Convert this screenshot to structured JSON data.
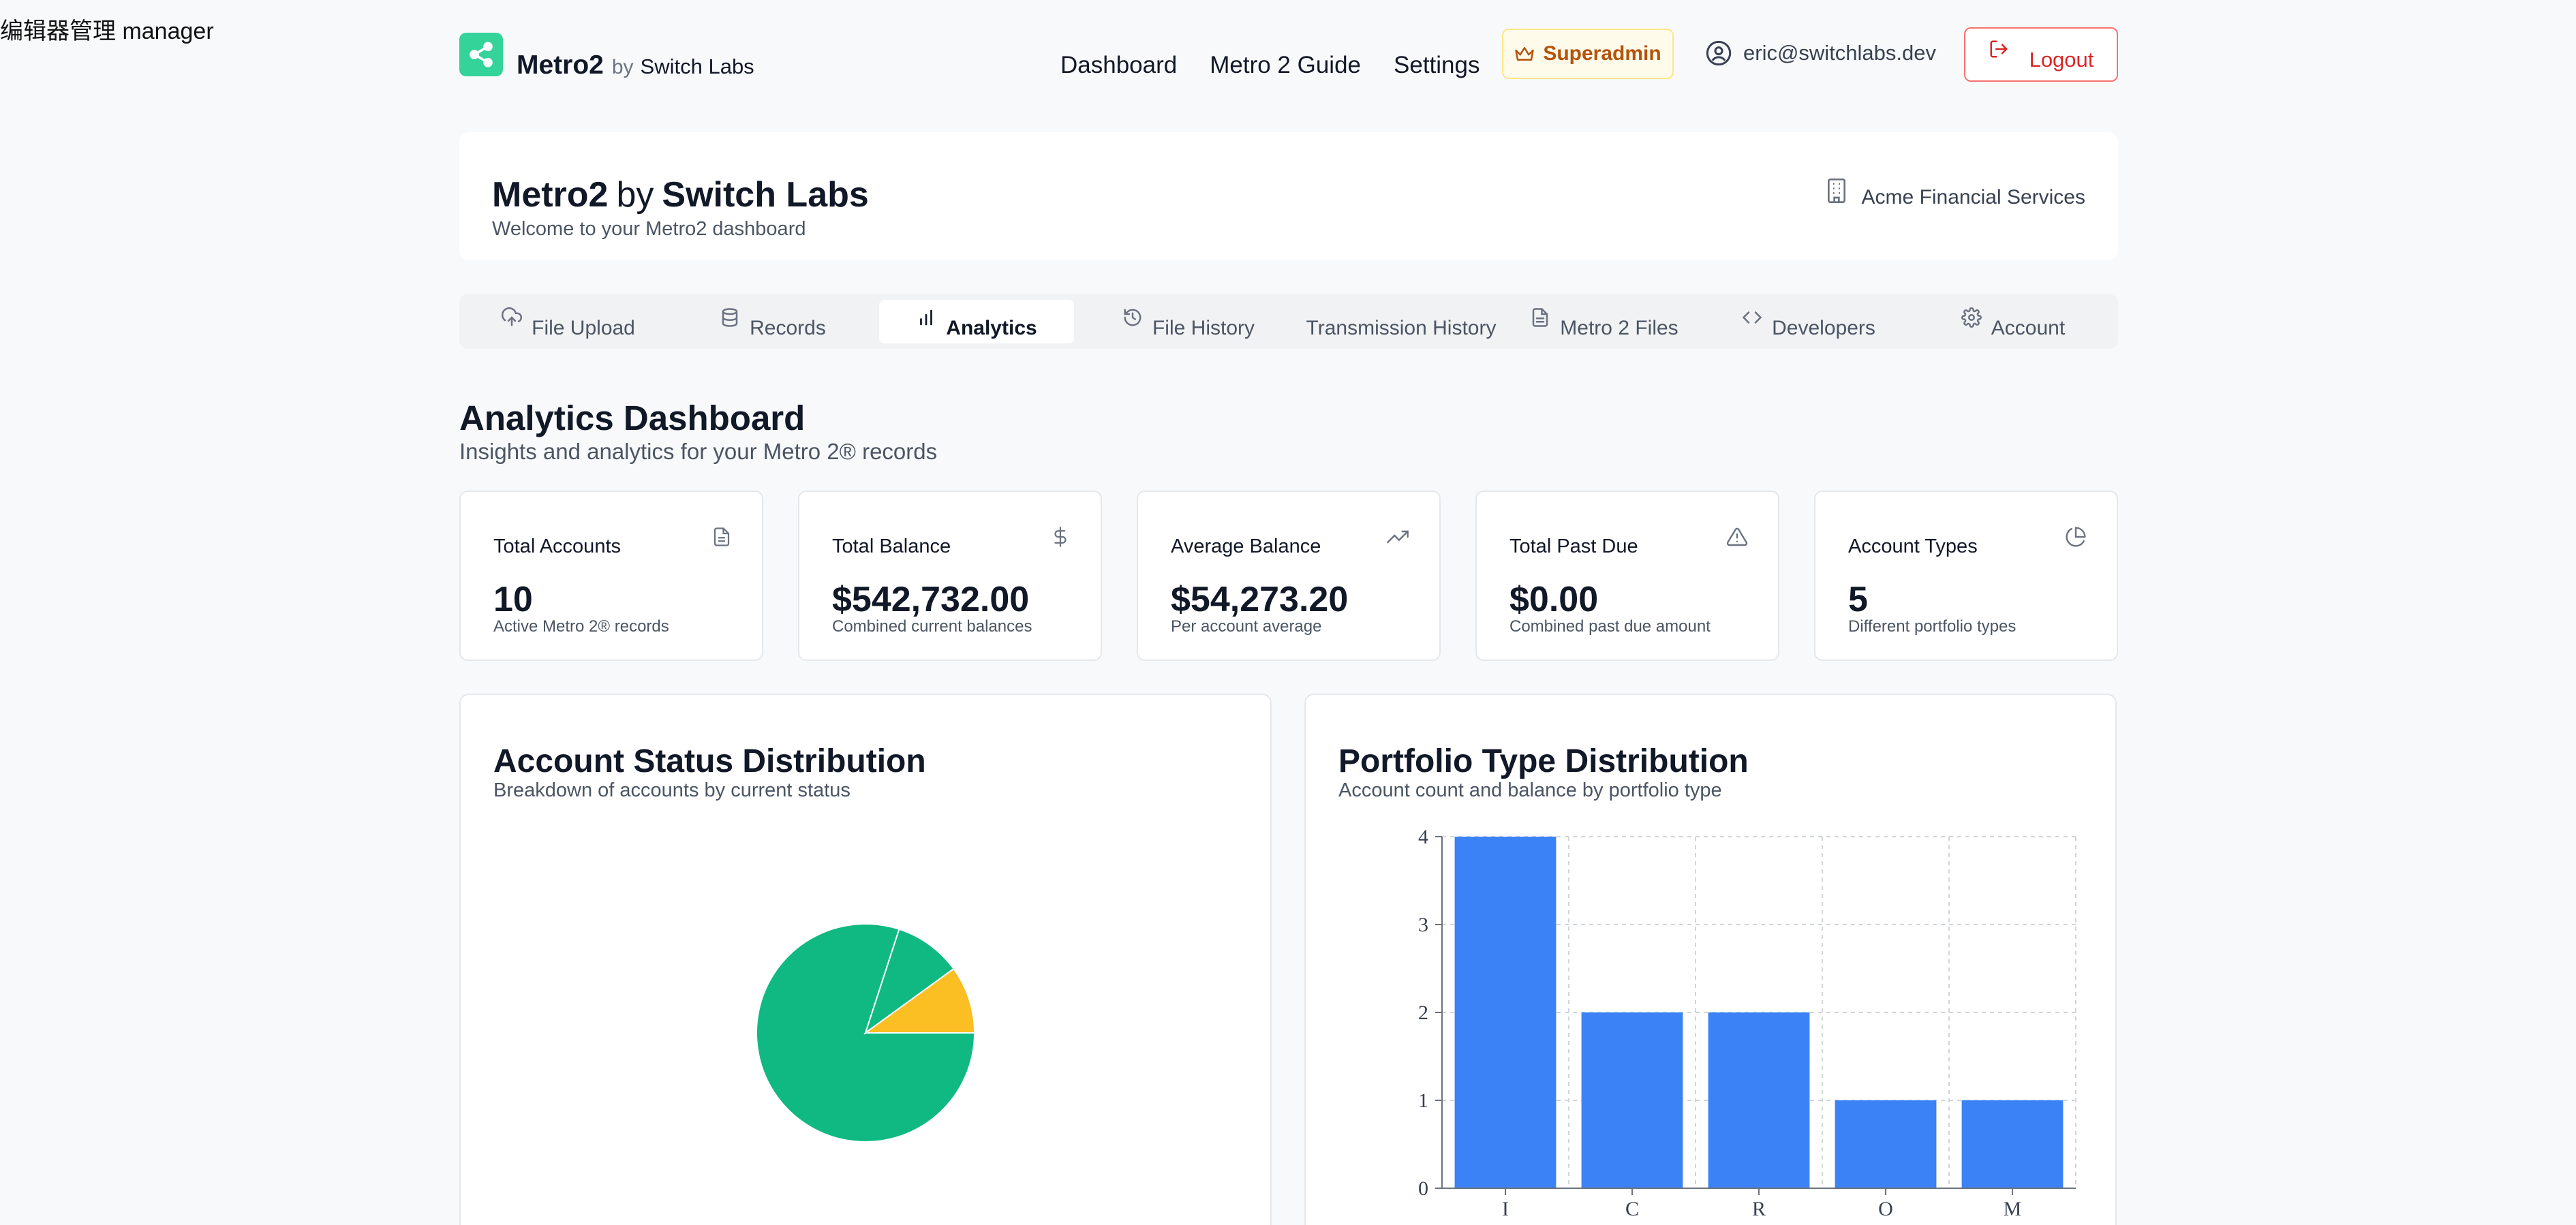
{
  "stray_text": "编辑器管理 manager",
  "nav": {
    "brand": "Metro2",
    "by": "by",
    "company": "Switch Labs",
    "links": [
      "Dashboard",
      "Metro 2 Guide",
      "Settings"
    ],
    "superadmin": "Superadmin",
    "user_email": "eric@switchlabs.dev",
    "logout": "Logout"
  },
  "hero": {
    "title_main": "Metro2",
    "title_by": "by",
    "title_company": "Switch Labs",
    "subtitle": "Welcome to your Metro2 dashboard",
    "organization": "Acme Financial Services"
  },
  "tabs": [
    {
      "label": "File Upload",
      "icon": "cloud-upload-icon",
      "active": false
    },
    {
      "label": "Records",
      "icon": "database-icon",
      "active": false
    },
    {
      "label": "Analytics",
      "icon": "bar-chart-icon",
      "active": true
    },
    {
      "label": "File History",
      "icon": "history-icon",
      "active": false
    },
    {
      "label": "Transmission History",
      "icon": "",
      "active": false
    },
    {
      "label": "Metro 2 Files",
      "icon": "file-text-icon",
      "active": false
    },
    {
      "label": "Developers",
      "icon": "code-icon",
      "active": false
    },
    {
      "label": "Account",
      "icon": "gear-icon",
      "active": false
    }
  ],
  "section": {
    "title": "Analytics Dashboard",
    "subtitle": "Insights and analytics for your Metro 2® records"
  },
  "stats": [
    {
      "title": "Total Accounts",
      "value": "10",
      "note": "Active Metro 2® records",
      "icon": "file-icon"
    },
    {
      "title": "Total Balance",
      "value": "$542,732.00",
      "note": "Combined current balances",
      "icon": "dollar-icon"
    },
    {
      "title": "Average Balance",
      "value": "$54,273.20",
      "note": "Per account average",
      "icon": "trending-up-icon"
    },
    {
      "title": "Total Past Due",
      "value": "$0.00",
      "note": "Combined past due amount",
      "icon": "alert-triangle-icon"
    },
    {
      "title": "Account Types",
      "value": "5",
      "note": "Different portfolio types",
      "icon": "pie-chart-icon"
    }
  ],
  "colors": {
    "accent_green": "#10b981",
    "accent_yellow": "#fbbf24",
    "bar_blue": "#3b82f6",
    "logout_red": "#dc2626",
    "superadmin_amber": "#b45309"
  },
  "panels": {
    "status": {
      "title": "Account Status Distribution",
      "subtitle": "Breakdown of accounts by current status"
    },
    "portfolio": {
      "title": "Portfolio Type Distribution",
      "subtitle": "Account count and balance by portfolio type"
    }
  },
  "chart_data": [
    {
      "type": "pie",
      "values": [
        8,
        1,
        1
      ],
      "colors": [
        "#10b981",
        "#10b981",
        "#fbbf24"
      ],
      "grid": false,
      "legend": "none"
    },
    {
      "type": "bar",
      "categories": [
        "I",
        "C",
        "R",
        "O",
        "M"
      ],
      "values": [
        4,
        2,
        2,
        1,
        1
      ],
      "yticks": [
        "0",
        "1",
        "2",
        "3",
        "4"
      ],
      "ylim": [
        0,
        4
      ],
      "color": "#3b82f6",
      "grid": true,
      "legend": "none"
    }
  ]
}
